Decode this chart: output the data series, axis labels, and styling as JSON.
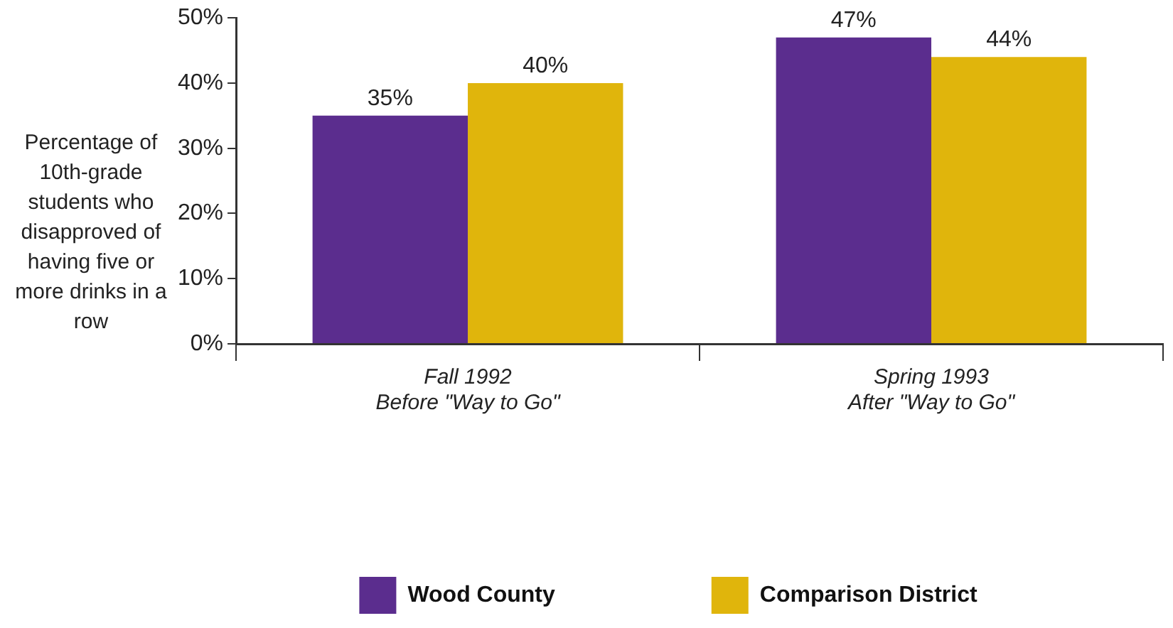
{
  "chart_data": {
    "type": "bar",
    "ylabel": "Percentage of 10th-grade students who disapproved of having five or more drinks in a row",
    "categories": [
      "Fall 1992\nBefore \"Way to Go\"",
      "Spring 1993\nAfter \"Way to Go\""
    ],
    "series": [
      {
        "name": "Wood County",
        "color": "#5b2d8e",
        "values": [
          35,
          47
        ],
        "value_labels": [
          "35%",
          "47%"
        ]
      },
      {
        "name": "Comparison District",
        "color": "#e0b50c",
        "values": [
          40,
          44
        ],
        "value_labels": [
          "40%",
          "44%"
        ]
      }
    ],
    "ylim": [
      0,
      50
    ],
    "yticks": [
      {
        "value": 0,
        "label": "0%"
      },
      {
        "value": 10,
        "label": "10%"
      },
      {
        "value": 20,
        "label": "20%"
      },
      {
        "value": 30,
        "label": "30%"
      },
      {
        "value": 40,
        "label": "40%"
      },
      {
        "value": 50,
        "label": "50%"
      }
    ],
    "grid": false,
    "legend": "bottom"
  }
}
